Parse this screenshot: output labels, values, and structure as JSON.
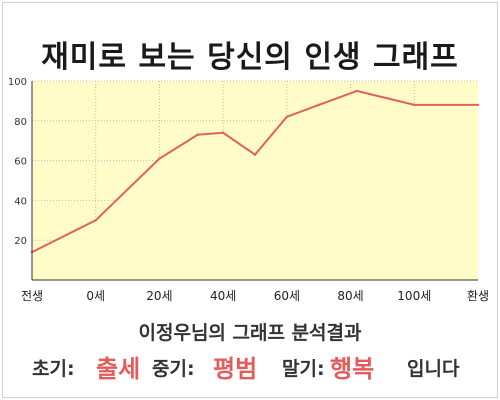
{
  "title": "재미로 보는 당신의 인생 그래프",
  "analysis_title": "이정우님의 그래프 분석결과",
  "phases": {
    "early_label": "초기:",
    "early_value": "출세",
    "mid_label": "중기:",
    "mid_value": "평범",
    "late_label": "말기:",
    "late_value": "행복",
    "closing": "입니다"
  },
  "colors": {
    "line": "#e06060",
    "fill": "#fffcc8",
    "highlight": "#e55a5a",
    "grid": "#bbbbbb"
  },
  "chart_data": {
    "type": "area",
    "x_tick_labels": [
      "전생",
      "0세",
      "20세",
      "40세",
      "60세",
      "80세",
      "100세",
      "환생"
    ],
    "x_tick_positions": [
      -20,
      0,
      20,
      40,
      60,
      80,
      100,
      120
    ],
    "x": [
      -20,
      0,
      20,
      32,
      40,
      50,
      60,
      70,
      82,
      100,
      120
    ],
    "values": [
      14,
      30,
      61,
      73,
      74,
      63,
      82,
      88,
      95,
      88,
      88
    ],
    "yticks": [
      20,
      40,
      60,
      80,
      100
    ],
    "xlim": [
      -20,
      120
    ],
    "ylim": [
      0,
      100
    ],
    "grid": true,
    "xlabel": "",
    "ylabel": ""
  }
}
